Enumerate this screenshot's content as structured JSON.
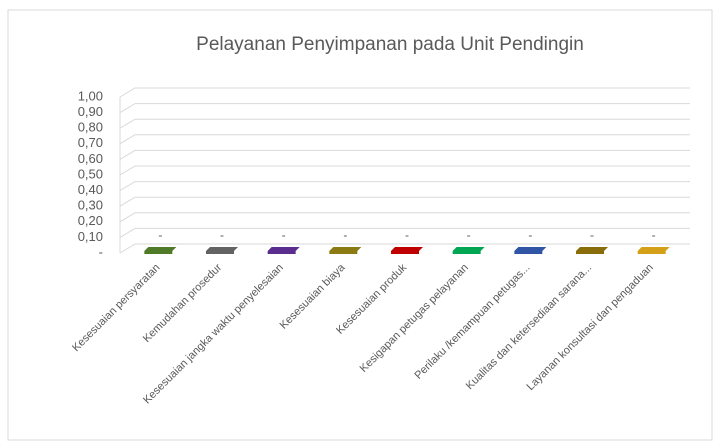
{
  "chart_data": {
    "type": "bar3d",
    "title": "Pelayanan Penyimpanan pada Unit Pendingin",
    "categories": [
      "Kesesuaian persyaratan",
      "Kemudahan prosedur",
      "Kesesuaian jangka waktu penyelesaian",
      "Kesesuaian biaya",
      "Kesesuaian produk",
      "Kesigapan petugas pelayanan",
      "Perilaku /kemampuan petugas...",
      "Kualitas dan ketersediaan sarana...",
      "Layanan konsultasi dan pengaduan"
    ],
    "values": [
      0,
      0,
      0,
      0,
      0,
      0,
      0,
      0,
      0
    ],
    "value_labels": [
      "-",
      "-",
      "-",
      "-",
      "-",
      "-",
      "-",
      "-",
      "-"
    ],
    "colors": [
      "#4f7a28",
      "#636363",
      "#5b2d8e",
      "#8c7a12",
      "#c00000",
      "#00a651",
      "#2f55a4",
      "#8a6d0b",
      "#d4a017"
    ],
    "ylim": [
      0,
      1
    ],
    "yticks": [
      {
        "value": 0,
        "label": "-"
      },
      {
        "value": 0.1,
        "label": "0,10"
      },
      {
        "value": 0.2,
        "label": "0,20"
      },
      {
        "value": 0.3,
        "label": "0,30"
      },
      {
        "value": 0.4,
        "label": "0,40"
      },
      {
        "value": 0.5,
        "label": "0,50"
      },
      {
        "value": 0.6,
        "label": "0,60"
      },
      {
        "value": 0.7,
        "label": "0,70"
      },
      {
        "value": 0.8,
        "label": "0,80"
      },
      {
        "value": 0.9,
        "label": "0,90"
      },
      {
        "value": 1,
        "label": "1,00"
      }
    ],
    "grid": true
  }
}
